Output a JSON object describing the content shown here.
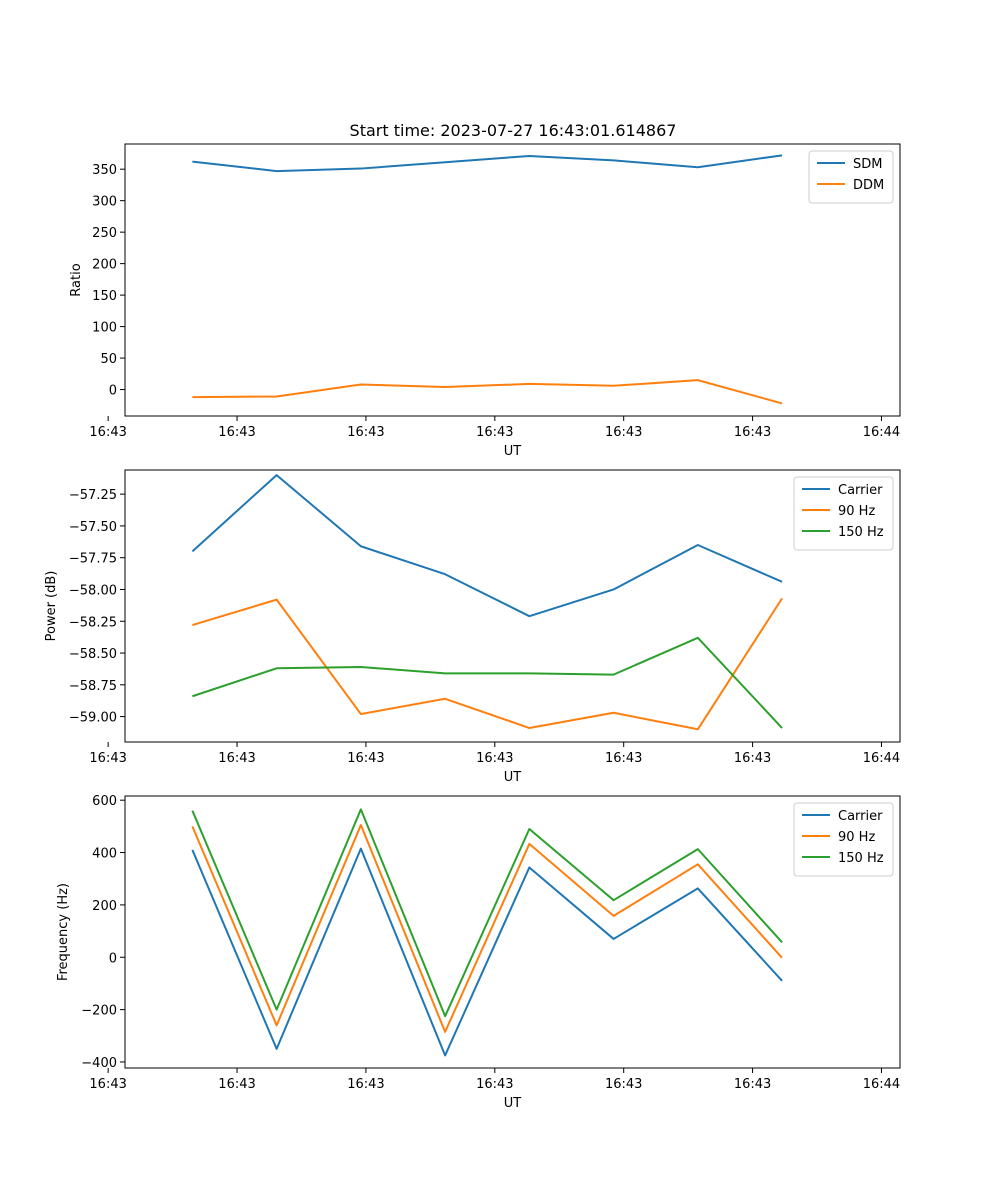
{
  "figure_title": "Start time: 2023-07-27 16:43:01.614867",
  "colors": {
    "blue": "#1f77b4",
    "orange": "#ff7f0e",
    "green": "#2ca02c"
  },
  "chart_data": [
    {
      "type": "line",
      "title": "Start time: 2023-07-27 16:43:01.614867",
      "xlabel": "UT",
      "ylabel": "Ratio",
      "x": [
        1,
        2,
        3,
        4,
        5,
        6,
        7,
        8
      ],
      "xlim": [
        0.2,
        9.4
      ],
      "xticks": [
        0,
        1.53,
        3.06,
        4.59,
        6.12,
        7.65,
        9.18
      ],
      "xtick_labels": [
        "16:43",
        "16:43",
        "16:43",
        "16:43",
        "16:43",
        "16:43",
        "16:44"
      ],
      "ylim": [
        -42,
        390
      ],
      "yticks": [
        0,
        50,
        100,
        150,
        200,
        250,
        300,
        350
      ],
      "ytick_labels": [
        "0",
        "50",
        "100",
        "150",
        "200",
        "250",
        "300",
        "350"
      ],
      "legend": "top-right",
      "series": [
        {
          "name": "SDM",
          "color": "#1f77b4",
          "values": [
            362,
            347,
            351,
            361,
            371,
            364,
            353,
            372
          ]
        },
        {
          "name": "DDM",
          "color": "#ff7f0e",
          "values": [
            -12,
            -11,
            8,
            4,
            9,
            6,
            15,
            -22
          ]
        }
      ]
    },
    {
      "type": "line",
      "xlabel": "UT",
      "ylabel": "Power (dB)",
      "x": [
        1,
        2,
        3,
        4,
        5,
        6,
        7,
        8
      ],
      "xlim": [
        0.2,
        9.4
      ],
      "xticks": [
        0,
        1.53,
        3.06,
        4.59,
        6.12,
        7.65,
        9.18
      ],
      "xtick_labels": [
        "16:43",
        "16:43",
        "16:43",
        "16:43",
        "16:43",
        "16:43",
        "16:44"
      ],
      "ylim": [
        -59.2,
        -57.06
      ],
      "yticks": [
        -59.0,
        -58.75,
        -58.5,
        -58.25,
        -58.0,
        -57.75,
        -57.5,
        -57.25
      ],
      "ytick_labels": [
        "−59.00",
        "−58.75",
        "−58.50",
        "−58.25",
        "−58.00",
        "−57.75",
        "−57.50",
        "−57.25"
      ],
      "legend": "top-right",
      "series": [
        {
          "name": "Carrier",
          "color": "#1f77b4",
          "values": [
            -57.7,
            -57.1,
            -57.66,
            -57.88,
            -58.21,
            -58.0,
            -57.65,
            -57.94
          ]
        },
        {
          "name": "90 Hz",
          "color": "#ff7f0e",
          "values": [
            -58.28,
            -58.08,
            -58.98,
            -58.86,
            -59.09,
            -58.97,
            -59.1,
            -58.07
          ]
        },
        {
          "name": "150 Hz",
          "color": "#2ca02c",
          "values": [
            -58.84,
            -58.62,
            -58.61,
            -58.66,
            -58.66,
            -58.67,
            -58.38,
            -59.09
          ]
        }
      ]
    },
    {
      "type": "line",
      "xlabel": "UT",
      "ylabel": "Frequency (Hz)",
      "x": [
        1,
        2,
        3,
        4,
        5,
        6,
        7,
        8
      ],
      "xlim": [
        0.2,
        9.4
      ],
      "xticks": [
        0,
        1.53,
        3.06,
        4.59,
        6.12,
        7.65,
        9.18
      ],
      "xtick_labels": [
        "16:43",
        "16:43",
        "16:43",
        "16:43",
        "16:43",
        "16:43",
        "16:44"
      ],
      "ylim": [
        -423,
        616
      ],
      "yticks": [
        -400,
        -200,
        0,
        200,
        400,
        600
      ],
      "ytick_labels": [
        "−400",
        "−200",
        "0",
        "200",
        "400",
        "600"
      ],
      "legend": "top-right",
      "series": [
        {
          "name": "Carrier",
          "color": "#1f77b4",
          "values": [
            410,
            -350,
            415,
            -375,
            343,
            70,
            263,
            -90
          ]
        },
        {
          "name": "90 Hz",
          "color": "#ff7f0e",
          "values": [
            500,
            -260,
            505,
            -285,
            433,
            158,
            355,
            -2
          ]
        },
        {
          "name": "150 Hz",
          "color": "#2ca02c",
          "values": [
            560,
            -200,
            565,
            -225,
            490,
            218,
            413,
            57
          ]
        }
      ]
    }
  ]
}
